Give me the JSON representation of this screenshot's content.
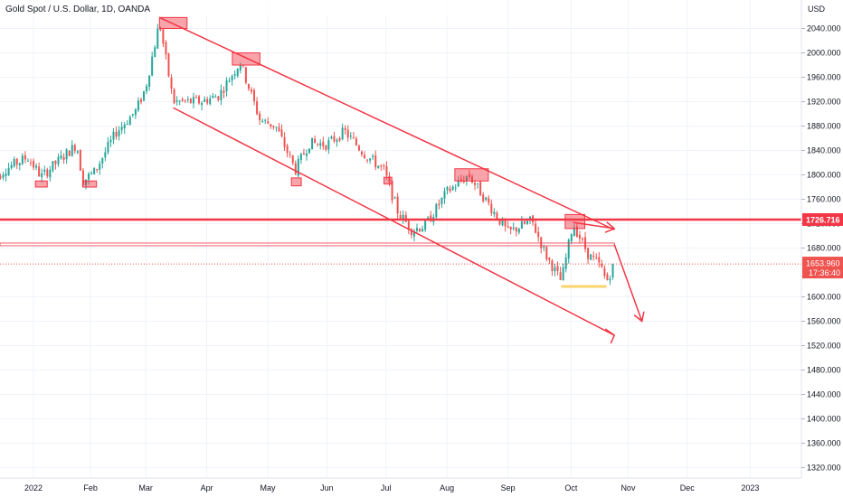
{
  "header": {
    "title": "Gold Spot / U.S. Dollar, 1D, OANDA"
  },
  "axis": {
    "currency": "USD"
  },
  "colors": {
    "up": "#26a69a",
    "down": "#ef5350",
    "drawing": "#f23645",
    "grid": "#f0f3fa",
    "text": "#131722",
    "marker": "#f7c948"
  },
  "chart_data": {
    "type": "candlestick",
    "title": "Gold Spot / U.S. Dollar, 1D, OANDA",
    "ylabel": "USD",
    "ylim": [
      1300,
      2080
    ],
    "grid": true,
    "y_ticks": [
      "2040.000",
      "2000.000",
      "1960.000",
      "1920.000",
      "1880.000",
      "1840.000",
      "1800.000",
      "1760.000",
      "1720.000",
      "1680.000",
      "1600.000",
      "1560.000",
      "1520.000",
      "1480.000",
      "1440.000",
      "1400.000",
      "1360.000",
      "1320.000"
    ],
    "x_ticks": [
      {
        "label": "2022",
        "date": "2022-01-03"
      },
      {
        "label": "Feb",
        "date": "2022-02-01"
      },
      {
        "label": "Mar",
        "date": "2022-03-01"
      },
      {
        "label": "Apr",
        "date": "2022-04-01"
      },
      {
        "label": "May",
        "date": "2022-05-02"
      },
      {
        "label": "Jun",
        "date": "2022-06-01"
      },
      {
        "label": "Jul",
        "date": "2022-07-01"
      },
      {
        "label": "Aug",
        "date": "2022-08-01"
      },
      {
        "label": "Sep",
        "date": "2022-09-01"
      },
      {
        "label": "Oct",
        "date": "2022-10-03"
      },
      {
        "label": "Nov",
        "date": "2022-11-01"
      },
      {
        "label": "Dec",
        "date": "2022-12-01"
      },
      {
        "label": "2023",
        "date": "2023-01-02"
      }
    ],
    "price_path": [
      [
        "2021-12-13",
        1790
      ],
      [
        "2021-12-20",
        1810
      ],
      [
        "2021-12-31",
        1829
      ],
      [
        "2022-01-07",
        1797
      ],
      [
        "2022-01-14",
        1818
      ],
      [
        "2022-01-25",
        1850
      ],
      [
        "2022-01-28",
        1790
      ],
      [
        "2022-02-03",
        1805
      ],
      [
        "2022-02-14",
        1870
      ],
      [
        "2022-02-24",
        1905
      ],
      [
        "2022-03-01",
        1943
      ],
      [
        "2022-03-08",
        2050
      ],
      [
        "2022-03-15",
        1920
      ],
      [
        "2022-03-29",
        1920
      ],
      [
        "2022-04-07",
        1930
      ],
      [
        "2022-04-18",
        1985
      ],
      [
        "2022-04-28",
        1890
      ],
      [
        "2022-05-06",
        1880
      ],
      [
        "2022-05-16",
        1808
      ],
      [
        "2022-05-23",
        1852
      ],
      [
        "2022-06-01",
        1850
      ],
      [
        "2022-06-10",
        1871
      ],
      [
        "2022-06-20",
        1835
      ],
      [
        "2022-06-30",
        1807
      ],
      [
        "2022-07-07",
        1740
      ],
      [
        "2022-07-14",
        1710
      ],
      [
        "2022-07-21",
        1717
      ],
      [
        "2022-08-01",
        1772
      ],
      [
        "2022-08-12",
        1800
      ],
      [
        "2022-08-23",
        1748
      ],
      [
        "2022-09-01",
        1705
      ],
      [
        "2022-09-13",
        1725
      ],
      [
        "2022-09-20",
        1670
      ],
      [
        "2022-09-28",
        1625
      ],
      [
        "2022-10-04",
        1720
      ],
      [
        "2022-10-12",
        1668
      ],
      [
        "2022-10-18",
        1650
      ],
      [
        "2022-10-21",
        1625
      ],
      [
        "2022-10-25",
        1654
      ]
    ],
    "resistance_level": {
      "value": 1726.716,
      "label": "1726.716"
    },
    "last_price": {
      "value": 1653.96,
      "label": "1653.960",
      "countdown": "17:36:40"
    },
    "breakout_level": 1686,
    "channel": {
      "upper": {
        "from": [
          "2022-03-08",
          2058
        ],
        "to": [
          "2022-10-25",
          1710
        ]
      },
      "lower": {
        "from": [
          "2022-03-15",
          1910
        ],
        "to": [
          "2022-10-25",
          1537
        ]
      }
    },
    "arrows": [
      {
        "from": [
          "2022-10-04",
          1722
        ],
        "to": [
          "2022-10-25",
          1712
        ]
      },
      {
        "from": [
          "2022-10-25",
          1686
        ],
        "to": [
          "2022-11-08",
          1560
        ]
      }
    ],
    "zones": [
      {
        "from": "2022-03-08",
        "to": "2022-03-22",
        "top": 2058,
        "bottom": 2040
      },
      {
        "from": "2022-04-14",
        "to": "2022-04-28",
        "top": 2000,
        "bottom": 1980
      },
      {
        "from": "2022-08-05",
        "to": "2022-08-22",
        "top": 1810,
        "bottom": 1790
      },
      {
        "from": "2022-09-30",
        "to": "2022-10-10",
        "top": 1735,
        "bottom": 1712
      },
      {
        "from": "2022-01-04",
        "to": "2022-01-10",
        "top": 1790,
        "bottom": 1780
      },
      {
        "from": "2022-01-28",
        "to": "2022-02-04",
        "top": 1790,
        "bottom": 1780
      },
      {
        "from": "2022-05-14",
        "to": "2022-05-19",
        "top": 1795,
        "bottom": 1782
      },
      {
        "from": "2022-06-30",
        "to": "2022-07-04",
        "top": 1796,
        "bottom": 1785
      }
    ],
    "support_marker": {
      "from": "2022-09-28",
      "to": "2022-10-21",
      "value": 1617
    }
  }
}
